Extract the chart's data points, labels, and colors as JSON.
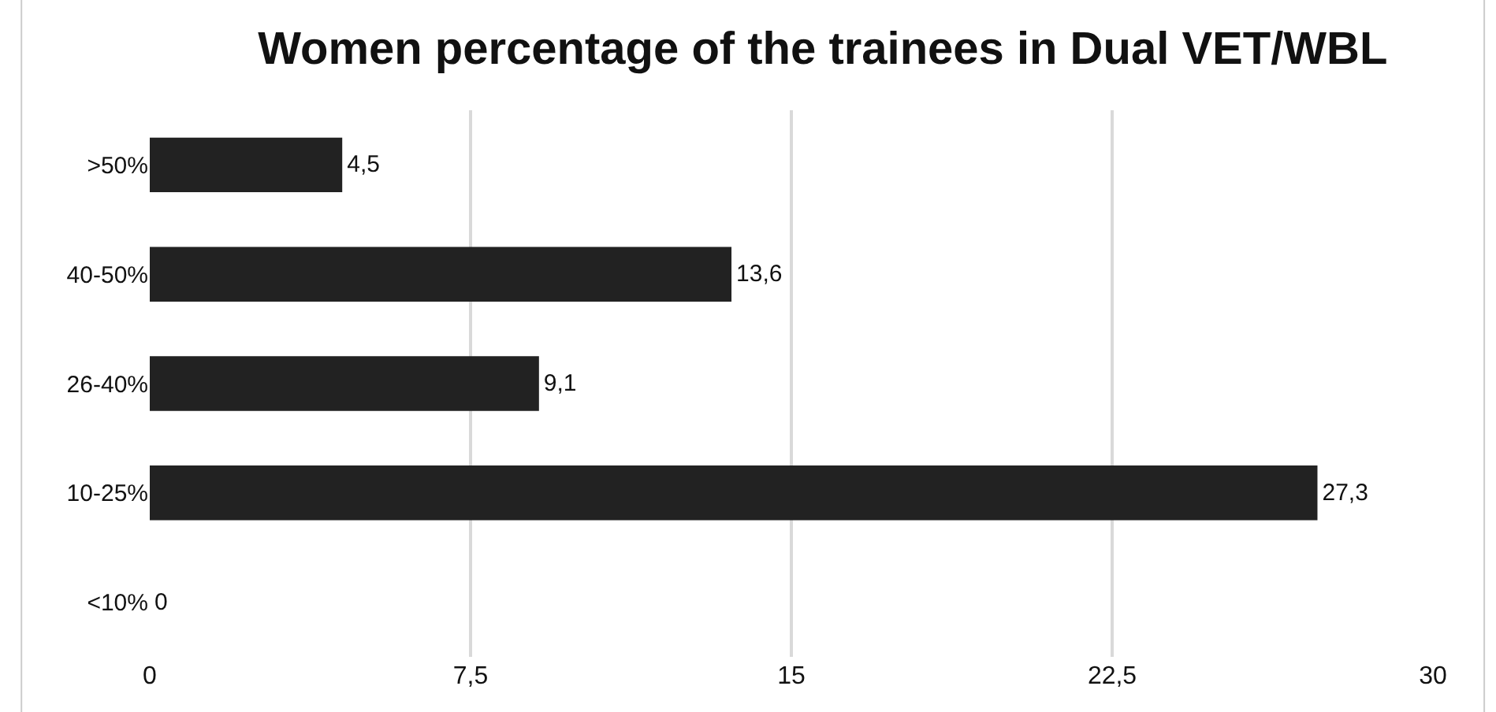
{
  "chart_data": {
    "type": "bar",
    "orientation": "horizontal",
    "title": "Women percentage of the trainees in Dual VET/WBL",
    "categories": [
      ">50%",
      "40-50%",
      "26-40%",
      "10-25%",
      "<10%"
    ],
    "values": [
      4.5,
      13.6,
      9.1,
      27.3,
      0
    ],
    "value_labels": [
      "4,5",
      "13,6",
      "9,1",
      "27,3",
      "0"
    ],
    "color": "#222222",
    "xlim": [
      0,
      30
    ],
    "xticks": [
      0,
      {
        "value": 7.5,
        "label": "7,5"
      },
      15,
      {
        "value": 22.5,
        "label": "22,5"
      },
      30
    ],
    "grid": "x",
    "legend": false
  }
}
